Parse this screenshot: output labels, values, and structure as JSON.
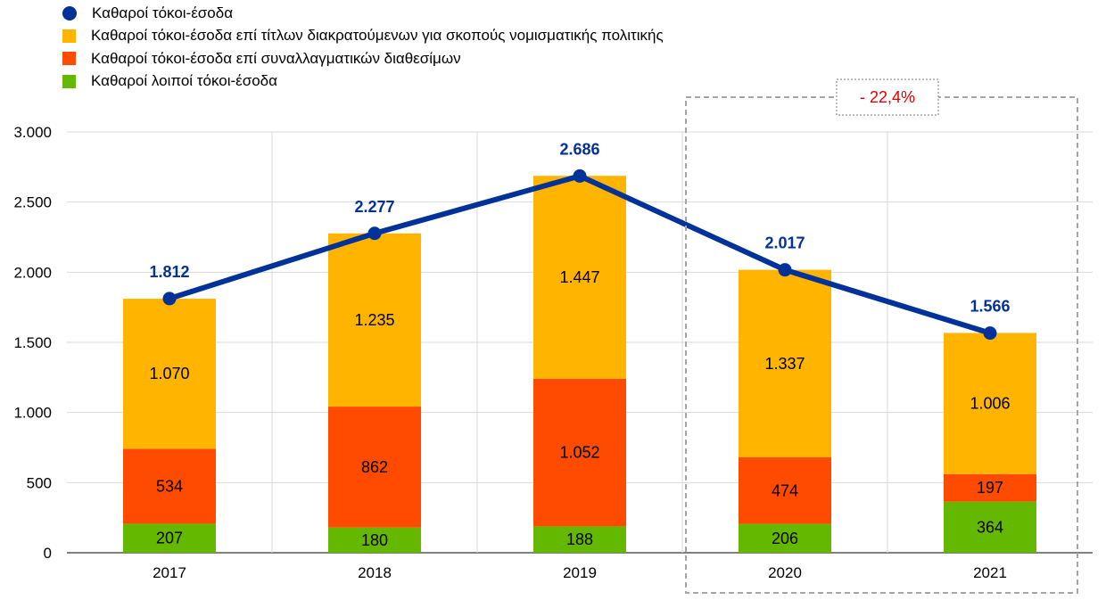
{
  "chart_data": {
    "type": "bar",
    "stacked": true,
    "categories": [
      "2017",
      "2018",
      "2019",
      "2020",
      "2021"
    ],
    "series": [
      {
        "name": "Καθαροί λοιποί τόκοι-έσοδα",
        "color": "#65B800",
        "values": [
          207,
          180,
          188,
          206,
          364
        ],
        "labels": [
          "207",
          "180",
          "188",
          "206",
          "364"
        ]
      },
      {
        "name": "Καθαροί τόκοι-έσοδα επί συναλλαγματικών διαθεσίμων",
        "color": "#FF4B00",
        "values": [
          534,
          862,
          1052,
          474,
          197
        ],
        "labels": [
          "534",
          "862",
          "1.052",
          "474",
          "197"
        ]
      },
      {
        "name": "Καθαροί τόκοι-έσοδα επί τίτλων διακρατούμενων για σκοπούς νομισματικής πολιτικής",
        "color": "#FFB400",
        "values": [
          1070,
          1235,
          1447,
          1337,
          1006
        ],
        "labels": [
          "1.070",
          "1.235",
          "1.447",
          "1.337",
          "1.006"
        ]
      }
    ],
    "line": {
      "name": "Καθαροί τόκοι-έσοδα",
      "color": "#003299",
      "values": [
        1812,
        2277,
        2686,
        2017,
        1566
      ],
      "labels": [
        "1.812",
        "2.277",
        "2.686",
        "2.017",
        "1.566"
      ]
    },
    "ylim": [
      0,
      3000
    ],
    "yticks": [
      0,
      500,
      1000,
      1500,
      2000,
      2500,
      3000
    ],
    "ytick_labels": [
      "0",
      "500",
      "1.000",
      "1.500",
      "2.000",
      "2.500",
      "3.000"
    ],
    "annotation": {
      "text": "- 22,4%",
      "color": "#E00000",
      "box_categories": [
        "2020",
        "2021"
      ]
    },
    "legend_position": "top-left",
    "grid": true
  },
  "legend": [
    {
      "label": "Καθαροί τόκοι-έσοδα",
      "color": "#003299",
      "marker": "circle"
    },
    {
      "label": "Καθαροί τόκοι-έσοδα επί τίτλων διακρατούμενων για σκοπούς νομισματικής πολιτικής",
      "color": "#FFB400",
      "marker": "square"
    },
    {
      "label": "Καθαροί τόκοι-έσοδα επί συναλλαγματικών διαθεσίμων",
      "color": "#FF4B00",
      "marker": "square"
    },
    {
      "label": "Καθαροί λοιποί τόκοι-έσοδα",
      "color": "#65B800",
      "marker": "square"
    }
  ]
}
